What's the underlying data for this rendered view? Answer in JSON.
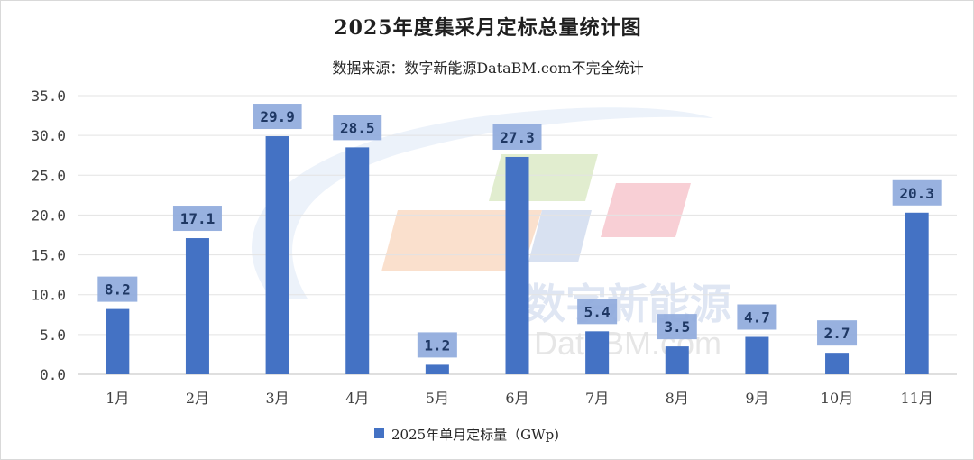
{
  "chart_data": {
    "type": "bar",
    "title": "2025年度集采月定标总量统计图",
    "subtitle": "数据来源：数字新能源DataBM.com不完全统计",
    "categories": [
      "1月",
      "2月",
      "3月",
      "4月",
      "5月",
      "6月",
      "7月",
      "8月",
      "9月",
      "10月",
      "11月"
    ],
    "series": [
      {
        "name": "2025年单月定标量（GWp)",
        "values": [
          8.2,
          17.1,
          29.9,
          28.5,
          1.2,
          27.3,
          5.4,
          3.5,
          4.7,
          2.7,
          20.3
        ],
        "value_labels": [
          "8.2",
          "17.1",
          "29.9",
          "28.5",
          "1.2",
          "27.3",
          "5.4",
          "3.5",
          "4.7",
          "2.7",
          "20.3"
        ]
      }
    ],
    "ylim": [
      0,
      35
    ],
    "yticks": [
      "0.0",
      "5.0",
      "10.0",
      "15.0",
      "20.0",
      "25.0",
      "30.0",
      "35.0"
    ],
    "xlabel": "",
    "ylabel": "",
    "grid": true,
    "legend_position": "bottom",
    "bar_color": "#4472c4",
    "label_box_color": "#8faadc"
  },
  "watermark": {
    "text_cn": "数字新能源",
    "text_en": "DataBM.com"
  }
}
